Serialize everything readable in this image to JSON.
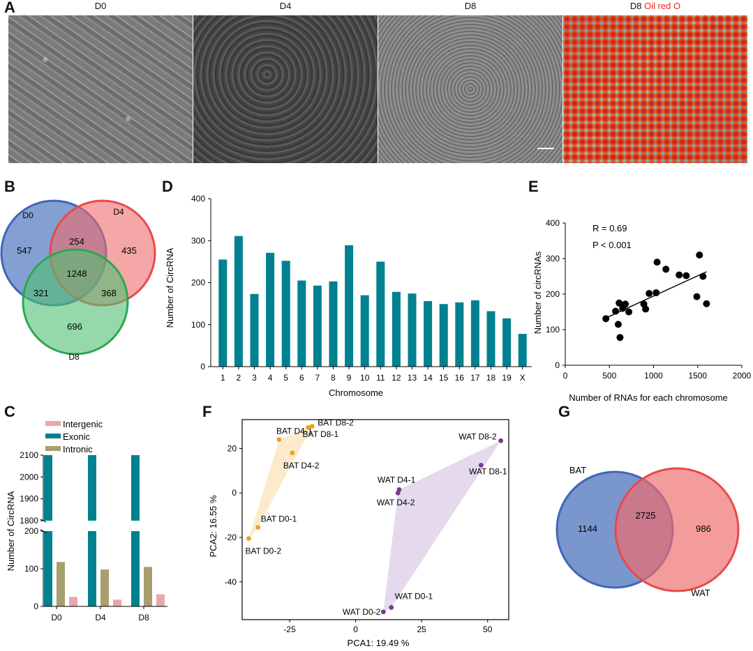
{
  "panel_letters": {
    "A": "A",
    "B": "B",
    "C": "C",
    "D": "D",
    "E": "E",
    "F": "F",
    "G": "G"
  },
  "panel_a": {
    "labels": [
      "D0",
      "D4",
      "D8"
    ],
    "oil_label_day": "D8",
    "oil_label_stain": "Oil red O",
    "colors": {
      "stain_red": "#e8291c",
      "stain_blue": "#6f9aa8"
    }
  },
  "venn_b": {
    "sets": [
      "D0",
      "D4",
      "D8"
    ],
    "regions": {
      "only_d0": "547",
      "only_d4": "435",
      "only_d8": "696",
      "d0_d4": "254",
      "d0_d8": "321",
      "d4_d8": "368",
      "all": "1248"
    },
    "colors": [
      "#5b7fc2",
      "#ef6b6b",
      "#4fbf72"
    ]
  },
  "chart_data": [
    {
      "id": "C",
      "type": "bar",
      "categories": [
        "D0",
        "D4",
        "D8"
      ],
      "series": [
        {
          "name": "Intergenic",
          "color": "#e8a7ad",
          "values": [
            25,
            18,
            32
          ]
        },
        {
          "name": "Exonic",
          "color": "#00818f",
          "values": [
            2100,
            2100,
            2100
          ]
        },
        {
          "name": "Intronic",
          "color": "#a89f6e",
          "values": [
            118,
            98,
            105
          ]
        }
      ],
      "ylabel": "Number of CircRNA",
      "axis_break": {
        "lower": [
          0,
          200
        ],
        "upper": [
          1800,
          2100
        ]
      },
      "yticks_lower": [
        0,
        100,
        200
      ],
      "yticks_upper": [
        1800,
        1900,
        2000,
        2100
      ]
    },
    {
      "id": "D",
      "type": "bar",
      "categories": [
        "1",
        "2",
        "3",
        "4",
        "5",
        "6",
        "7",
        "8",
        "9",
        "10",
        "11",
        "12",
        "13",
        "14",
        "15",
        "16",
        "17",
        "18",
        "19",
        "X"
      ],
      "values": [
        255,
        311,
        173,
        271,
        252,
        205,
        193,
        203,
        289,
        170,
        250,
        178,
        174,
        156,
        149,
        153,
        158,
        132,
        115,
        78
      ],
      "color": "#00818f",
      "xlabel": "Chromosome",
      "ylabel": "Number of CircRNA",
      "ylim": [
        0,
        400
      ],
      "yticks": [
        0,
        100,
        200,
        300,
        400
      ]
    },
    {
      "id": "E",
      "type": "scatter",
      "points": [
        [
          460,
          131
        ],
        [
          570,
          152
        ],
        [
          600,
          115
        ],
        [
          610,
          175
        ],
        [
          620,
          78
        ],
        [
          650,
          160
        ],
        [
          680,
          172
        ],
        [
          720,
          150
        ],
        [
          890,
          172
        ],
        [
          910,
          158
        ],
        [
          950,
          202
        ],
        [
          1030,
          204
        ],
        [
          1040,
          290
        ],
        [
          1140,
          270
        ],
        [
          1290,
          254
        ],
        [
          1370,
          252
        ],
        [
          1490,
          193
        ],
        [
          1520,
          310
        ],
        [
          1560,
          250
        ],
        [
          1600,
          173
        ]
      ],
      "fit_line": [
        [
          460,
          133
        ],
        [
          1600,
          263
        ]
      ],
      "annotation_r": "R = 0.69",
      "annotation_p": "P < 0.001",
      "xlabel": "Number of RNAs for each chromosome",
      "ylabel": "Number of circRNAs",
      "xlim": [
        0,
        2000
      ],
      "ylim": [
        0,
        400
      ],
      "xticks": [
        0,
        500,
        1000,
        1500,
        2000
      ],
      "yticks": [
        0,
        100,
        200,
        300,
        400
      ]
    },
    {
      "id": "F",
      "type": "scatter",
      "xlabel": "PCA1: 19.49 %",
      "ylabel": "PCA2: 16.55 %",
      "xlim": [
        -43,
        58
      ],
      "ylim": [
        -57,
        33
      ],
      "xticks": [
        -25,
        0,
        25,
        50
      ],
      "yticks": [
        20,
        0,
        -20,
        -40
      ],
      "groups": [
        {
          "name": "BAT",
          "color": "#f0a020",
          "hull_color": "#fbe6c4",
          "points": [
            {
              "label": "BAT D0-1",
              "x": -37,
              "y": -15.5
            },
            {
              "label": "BAT D0-2",
              "x": -40.5,
              "y": -20.5
            },
            {
              "label": "BAT D4-1",
              "x": -29,
              "y": 24
            },
            {
              "label": "BAT D4-2",
              "x": -24,
              "y": 18
            },
            {
              "label": "BAT D8-1",
              "x": -18,
              "y": 29.5
            },
            {
              "label": "BAT D8-2",
              "x": -16.5,
              "y": 30
            }
          ]
        },
        {
          "name": "WAT",
          "color": "#7a3a90",
          "hull_color": "#e0d3ea",
          "points": [
            {
              "label": "WAT D0-1",
              "x": 13.5,
              "y": -51.5
            },
            {
              "label": "WAT D0-2",
              "x": 10.5,
              "y": -53.5
            },
            {
              "label": "WAT D4-1",
              "x": 16.5,
              "y": 1.5
            },
            {
              "label": "WAT D4-2",
              "x": 16,
              "y": 0
            },
            {
              "label": "WAT D8-1",
              "x": 47.5,
              "y": 12.5
            },
            {
              "label": "WAT D8-2",
              "x": 55,
              "y": 23.5
            }
          ]
        }
      ]
    }
  ],
  "venn_g": {
    "sets": [
      "BAT",
      "WAT"
    ],
    "regions": {
      "only_bat": "1144",
      "both": "2725",
      "only_wat": "986"
    },
    "colors": [
      "#5b7fc2",
      "#ef6b6b"
    ]
  }
}
